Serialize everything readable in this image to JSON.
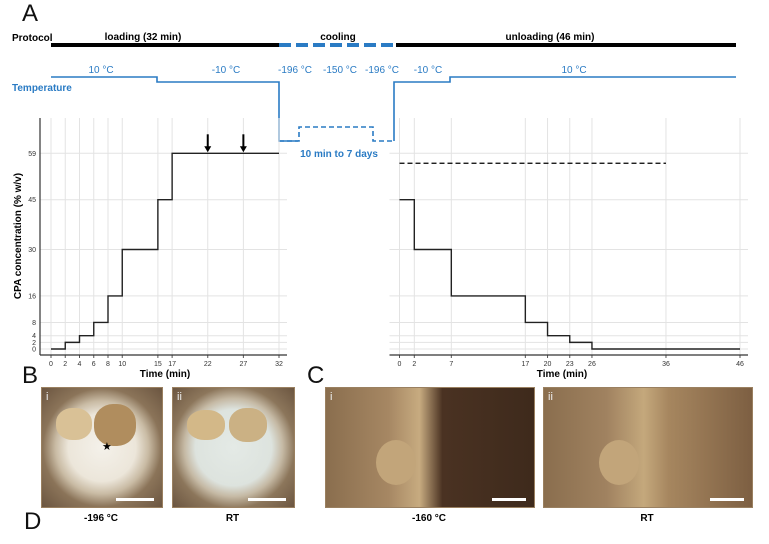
{
  "panels": {
    "a": "A",
    "b": "B",
    "c": "C",
    "d": "D"
  },
  "protocol": {
    "label": "Protocol",
    "phases": [
      {
        "name": "loading (32 min)"
      },
      {
        "name": "cooling"
      },
      {
        "name": "unloading (46 min)"
      }
    ]
  },
  "temperature": {
    "label": "Temperature",
    "labels": [
      "10 °C",
      "-10 °C",
      "-196 °C",
      "-150 °C",
      "-196 °C",
      "-10 °C",
      "10 °C"
    ],
    "storage_note": "10 min to 7 days"
  },
  "colors": {
    "accent": "#2a7bc4",
    "line": "#222222",
    "grid": "#e3e3e3"
  },
  "chart_data": [
    {
      "type": "line",
      "step": true,
      "name": "loading",
      "ylabel": "CPA concentration (% w/v)",
      "xlabel": "Time (min)",
      "xticks": [
        0,
        2,
        4,
        6,
        8,
        10,
        15,
        17,
        22,
        27,
        32
      ],
      "yticks": [
        0,
        2,
        4,
        8,
        16,
        30,
        45,
        59
      ],
      "xlim": [
        0,
        32
      ],
      "ylim": [
        0,
        59
      ],
      "x": [
        0,
        2,
        4,
        6,
        8,
        10,
        15,
        17,
        32
      ],
      "y": [
        0,
        2,
        4,
        8,
        16,
        30,
        45,
        59,
        59
      ],
      "arrows_at": [
        22,
        27
      ],
      "grid": true
    },
    {
      "type": "line",
      "step": true,
      "name": "unloading",
      "xlabel": "Time (min)",
      "xticks": [
        0,
        2,
        7,
        17,
        20,
        23,
        26,
        36,
        46
      ],
      "xlim": [
        0,
        46
      ],
      "ylim": [
        0,
        59
      ],
      "x": [
        0,
        2,
        7,
        17,
        20,
        23,
        26,
        46
      ],
      "y": [
        45,
        30,
        16,
        8,
        4,
        2,
        0,
        0
      ],
      "dashed_reference": {
        "value": 56,
        "x_from": 0,
        "x_to": 36
      },
      "grid": true
    }
  ],
  "photos": {
    "b": [
      {
        "index": "i",
        "caption": "-196 °C",
        "marker": "★"
      },
      {
        "index": "ii",
        "caption": "RT"
      }
    ],
    "c": [
      {
        "index": "i",
        "caption": "-160 °C"
      },
      {
        "index": "ii",
        "caption": "RT"
      }
    ]
  }
}
